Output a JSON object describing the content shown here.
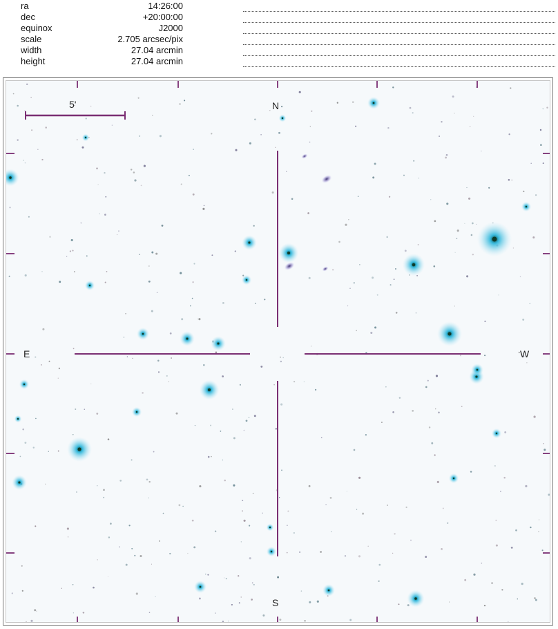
{
  "params": [
    {
      "key": "ra",
      "value": "14:26:00"
    },
    {
      "key": "dec",
      "value": "+20:00:00"
    },
    {
      "key": "equinox",
      "value": "J2000"
    },
    {
      "key": "scale",
      "value": "2.705 arcsec/pix"
    },
    {
      "key": "width",
      "value": "27.04 arcmin"
    },
    {
      "key": "height",
      "value": "27.04 arcmin"
    }
  ],
  "chart": {
    "north_label": "N",
    "south_label": "S",
    "east_label": "E",
    "west_label": "W",
    "scale_bar_label": "5'",
    "marker_color": "#7a2e73",
    "star_color": "#1ab0d8"
  }
}
